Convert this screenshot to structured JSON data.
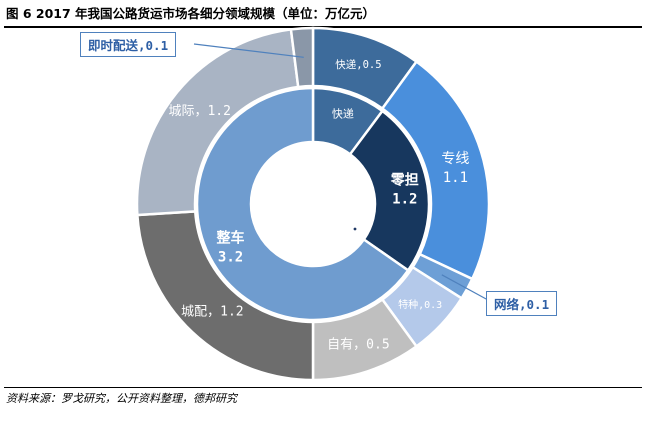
{
  "figure": {
    "title": "图 6 2017 年我国公路货运市场各细分领域规模（单位：万亿元）",
    "source": "资料来源：罗戈研究，公开资料整理，德邦研究"
  },
  "chart_data": {
    "type": "pie",
    "subtype": "sunburst-donut",
    "title": "图 6 2017 年我国公路货运市场各细分领域规模（单位：万亿元）",
    "unit": "万亿元",
    "inner_ring": [
      {
        "name": "快递",
        "value": 0.5,
        "label": "快递",
        "color": "#3d6b9b"
      },
      {
        "name": "零担",
        "value": 1.2,
        "label": "零担\n1.2",
        "color": "#17375e"
      },
      {
        "name": "整车",
        "value": 3.2,
        "label": "整车\n3.2",
        "color": "#6f9ccf"
      }
    ],
    "outer_ring": [
      {
        "name": "快递",
        "value": 0.5,
        "label": "快递,0.5",
        "color": "#3d6b9b"
      },
      {
        "name": "专线",
        "value": 1.1,
        "label": "专线\n1.1",
        "color": "#4a8fdc"
      },
      {
        "name": "网络",
        "value": 0.1,
        "label": "网络,0.1",
        "color": "#6d9fd6"
      },
      {
        "name": "特种",
        "value": 0.3,
        "label": "特种,0.3",
        "color": "#b4c9ea"
      },
      {
        "name": "自有",
        "value": 0.5,
        "label": "自有，0.5",
        "color": "#bfbfbf"
      },
      {
        "name": "城配",
        "value": 1.2,
        "label": "城配，1.2",
        "color": "#6d6d6d"
      },
      {
        "name": "城际",
        "value": 1.2,
        "label": "城际，1.2",
        "color": "#a9b4c4"
      },
      {
        "name": "即时配送",
        "value": 0.1,
        "label": "即时配送,0.1",
        "color": "#8a97a8"
      }
    ],
    "callouts": [
      {
        "target": "即时配送",
        "text": "即时配送,0.1"
      },
      {
        "target": "网络",
        "text": "网络,0.1"
      }
    ]
  }
}
